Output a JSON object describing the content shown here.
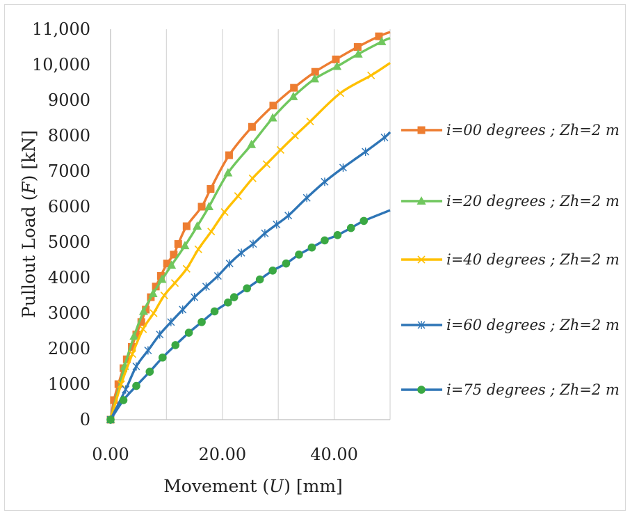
{
  "chart_data": {
    "type": "line",
    "xlabel_parts": [
      "Movement (",
      "U",
      ") [mm]"
    ],
    "ylabel_parts": [
      "Pullout  Load (",
      "F",
      ") [kN]"
    ],
    "xlim": [
      0,
      50
    ],
    "ylim": [
      0,
      11000
    ],
    "x_ticks": [
      0,
      20,
      40
    ],
    "x_tick_labels": [
      "0.00",
      "20.00",
      "40.00"
    ],
    "y_ticks": [
      0,
      1000,
      2000,
      3000,
      4000,
      5000,
      6000,
      7000,
      8000,
      9000,
      10000,
      11000
    ],
    "y_tick_labels": [
      "0",
      "1000",
      "2000",
      "3000",
      "4000",
      "5000",
      "6000",
      "7000",
      "8000",
      "9000",
      "10,000",
      "11,000"
    ],
    "grid": {
      "vertical": true,
      "horizontal": false,
      "color": "#d9d9d9"
    },
    "legend_position": "right",
    "series": [
      {
        "name": "i=00 degrees ; Zh=2 m",
        "color": "#ed7d31",
        "marker": "square",
        "x": [
          0,
          0.6,
          1.4,
          2.3,
          2.9,
          3.8,
          4.6,
          5.5,
          6.3,
          7.2,
          8.1,
          9.0,
          10.1,
          11.3,
          12.1,
          13.6,
          16.3,
          17.9,
          21.2,
          25.3,
          29.1,
          32.8,
          36.6,
          40.3,
          44.2,
          48.0,
          50.0
        ],
        "y": [
          0,
          550,
          1000,
          1450,
          1700,
          2050,
          2400,
          2750,
          3100,
          3450,
          3750,
          4050,
          4400,
          4650,
          4950,
          5450,
          6000,
          6500,
          7450,
          8250,
          8850,
          9350,
          9800,
          10150,
          10500,
          10800,
          10920
        ]
      },
      {
        "name": "i=20 degrees ; Zh=2 m",
        "color": "#70c75e",
        "marker": "triangle",
        "x": [
          0,
          2.5,
          4.2,
          5.9,
          7.6,
          9.2,
          10.9,
          13.3,
          15.5,
          17.6,
          21.0,
          25.2,
          29.0,
          32.7,
          36.5,
          40.5,
          44.3,
          48.5,
          50.0
        ],
        "y": [
          0,
          1500,
          2350,
          3050,
          3550,
          3950,
          4350,
          4900,
          5450,
          6000,
          6950,
          7750,
          8500,
          9100,
          9600,
          9950,
          10300,
          10650,
          10750
        ]
      },
      {
        "name": "i=40 degrees ; Zh=2 m",
        "color": "#ffc000",
        "marker": "x",
        "x": [
          0,
          1.9,
          3.9,
          5.8,
          7.7,
          9.6,
          11.5,
          13.6,
          15.7,
          18.0,
          20.4,
          22.8,
          25.4,
          27.9,
          30.4,
          33.0,
          35.7,
          41.1,
          46.6,
          50.0
        ],
        "y": [
          0,
          1000,
          1850,
          2550,
          3000,
          3500,
          3850,
          4250,
          4800,
          5300,
          5850,
          6300,
          6800,
          7200,
          7600,
          8000,
          8400,
          9200,
          9700,
          10050
        ]
      },
      {
        "name": "i=60 degrees ; Zh=2 m",
        "color": "#2e75b6",
        "marker": "star",
        "x": [
          0,
          2.7,
          4.6,
          6.7,
          8.8,
          10.8,
          12.9,
          15.0,
          17.1,
          19.2,
          21.3,
          23.4,
          25.5,
          27.6,
          29.7,
          31.8,
          35.1,
          38.3,
          41.6,
          45.6,
          49.0,
          50.0
        ],
        "y": [
          0,
          850,
          1500,
          1950,
          2400,
          2750,
          3100,
          3450,
          3750,
          4050,
          4400,
          4700,
          4950,
          5250,
          5500,
          5750,
          6250,
          6700,
          7100,
          7550,
          7950,
          8100
        ]
      },
      {
        "name": "i=75 degrees ; Zh=2 m",
        "color": "#2e75b6",
        "marker_color": "#3aa843",
        "marker": "circle",
        "x": [
          0,
          2.3,
          4.6,
          7.0,
          9.3,
          11.6,
          14.0,
          16.3,
          18.6,
          21.0,
          22.1,
          24.4,
          26.7,
          29.0,
          31.4,
          33.7,
          36.0,
          38.3,
          40.6,
          43.0,
          45.3,
          50.0
        ],
        "y": [
          0,
          550,
          950,
          1350,
          1750,
          2100,
          2450,
          2750,
          3050,
          3300,
          3450,
          3700,
          3950,
          4200,
          4400,
          4650,
          4850,
          5050,
          5200,
          5400,
          5600,
          5900
        ]
      }
    ]
  }
}
